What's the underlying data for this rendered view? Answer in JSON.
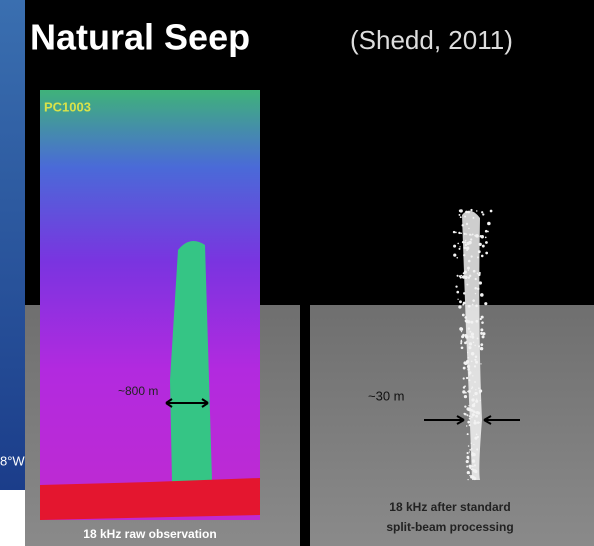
{
  "slide": {
    "title": "Natural Seep",
    "citation": "(Shedd, 2011)",
    "edge_label": "8°W",
    "left_panel": {
      "tag": "PC1003",
      "width_label": "~800 m",
      "caption": "18 kHz raw observation"
    },
    "right_panel": {
      "width_label": "~30 m",
      "caption_lines": [
        "18 kHz after standard",
        "split-beam processing"
      ]
    }
  }
}
